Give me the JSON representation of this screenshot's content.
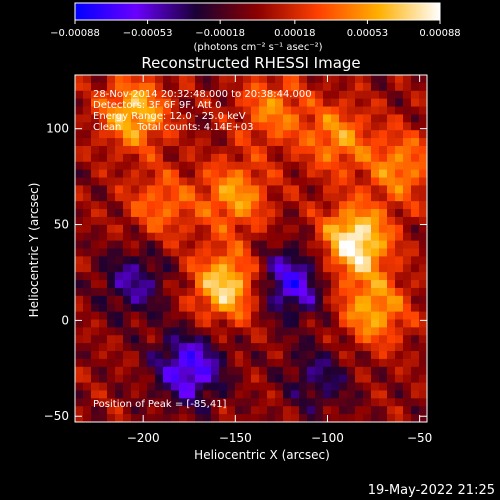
{
  "chart_data": {
    "type": "heatmap",
    "title": "Reconstructed RHESSI Image",
    "xlabel": "Heliocentric X (arcsec)",
    "ylabel": "Heliocentric Y (arcsec)",
    "xlim": [
      -237,
      -46
    ],
    "ylim": [
      -53,
      128
    ],
    "x_ticks": [
      -200,
      -150,
      -100,
      -50
    ],
    "y_ticks": [
      -50,
      0,
      50,
      100
    ],
    "x_tick_labels": [
      "−200",
      "−150",
      "−100",
      "−50"
    ],
    "y_tick_labels": [
      "−50",
      "0",
      "50",
      "100"
    ],
    "colorbar": {
      "min": -0.00088,
      "max": 0.00088,
      "tick_values": [
        -0.00088,
        -0.00053,
        -0.00018,
        0.00018,
        0.00053,
        0.00088
      ],
      "tick_labels": [
        "−0.00088",
        "−0.00053",
        "−0.00018",
        "0.00018",
        "0.00053",
        "0.00088"
      ],
      "unit_label": "(photons cm⁻² s⁻¹ asec⁻²)",
      "colors": [
        "#0000ff",
        "#6a00ff",
        "#1a0033",
        "#8b0000",
        "#ff4000",
        "#ffb000",
        "#ffffff"
      ]
    },
    "annotations": [
      "28-Nov-2014 20:32:48.000 to 20:38:44.000",
      "Detectors: 3F 6F 9F, Att 0",
      "Energy Range: 12.0 - 25.0 keV",
      "Clean     Total counts: 4.14E+03"
    ],
    "peak_label": "Position of Peak = [-85,41]",
    "peak": {
      "x": -85,
      "y": 41
    },
    "bright_sources": [
      {
        "x": -85,
        "y": 41,
        "intensity": 1.0
      },
      {
        "x": -155,
        "y": 18,
        "intensity": 0.85
      },
      {
        "x": -205,
        "y": 108,
        "intensity": 0.75
      },
      {
        "x": -150,
        "y": 65,
        "intensity": 0.6
      },
      {
        "x": -75,
        "y": 5,
        "intensity": 0.65
      },
      {
        "x": -95,
        "y": 95,
        "intensity": 0.55
      },
      {
        "x": -60,
        "y": 80,
        "intensity": 0.55
      },
      {
        "x": -130,
        "y": 110,
        "intensity": 0.5
      },
      {
        "x": -190,
        "y": 60,
        "intensity": 0.45
      }
    ],
    "dim_regions": [
      {
        "x": -175,
        "y": -25,
        "intensity": -0.8
      },
      {
        "x": -120,
        "y": 20,
        "intensity": -0.75
      },
      {
        "x": -205,
        "y": 20,
        "intensity": -0.5
      },
      {
        "x": -105,
        "y": -30,
        "intensity": -0.4
      }
    ]
  },
  "footer": {
    "timestamp": "19-May-2022 21:25"
  },
  "colors": {
    "background": "#000000",
    "foreground": "#ffffff"
  }
}
